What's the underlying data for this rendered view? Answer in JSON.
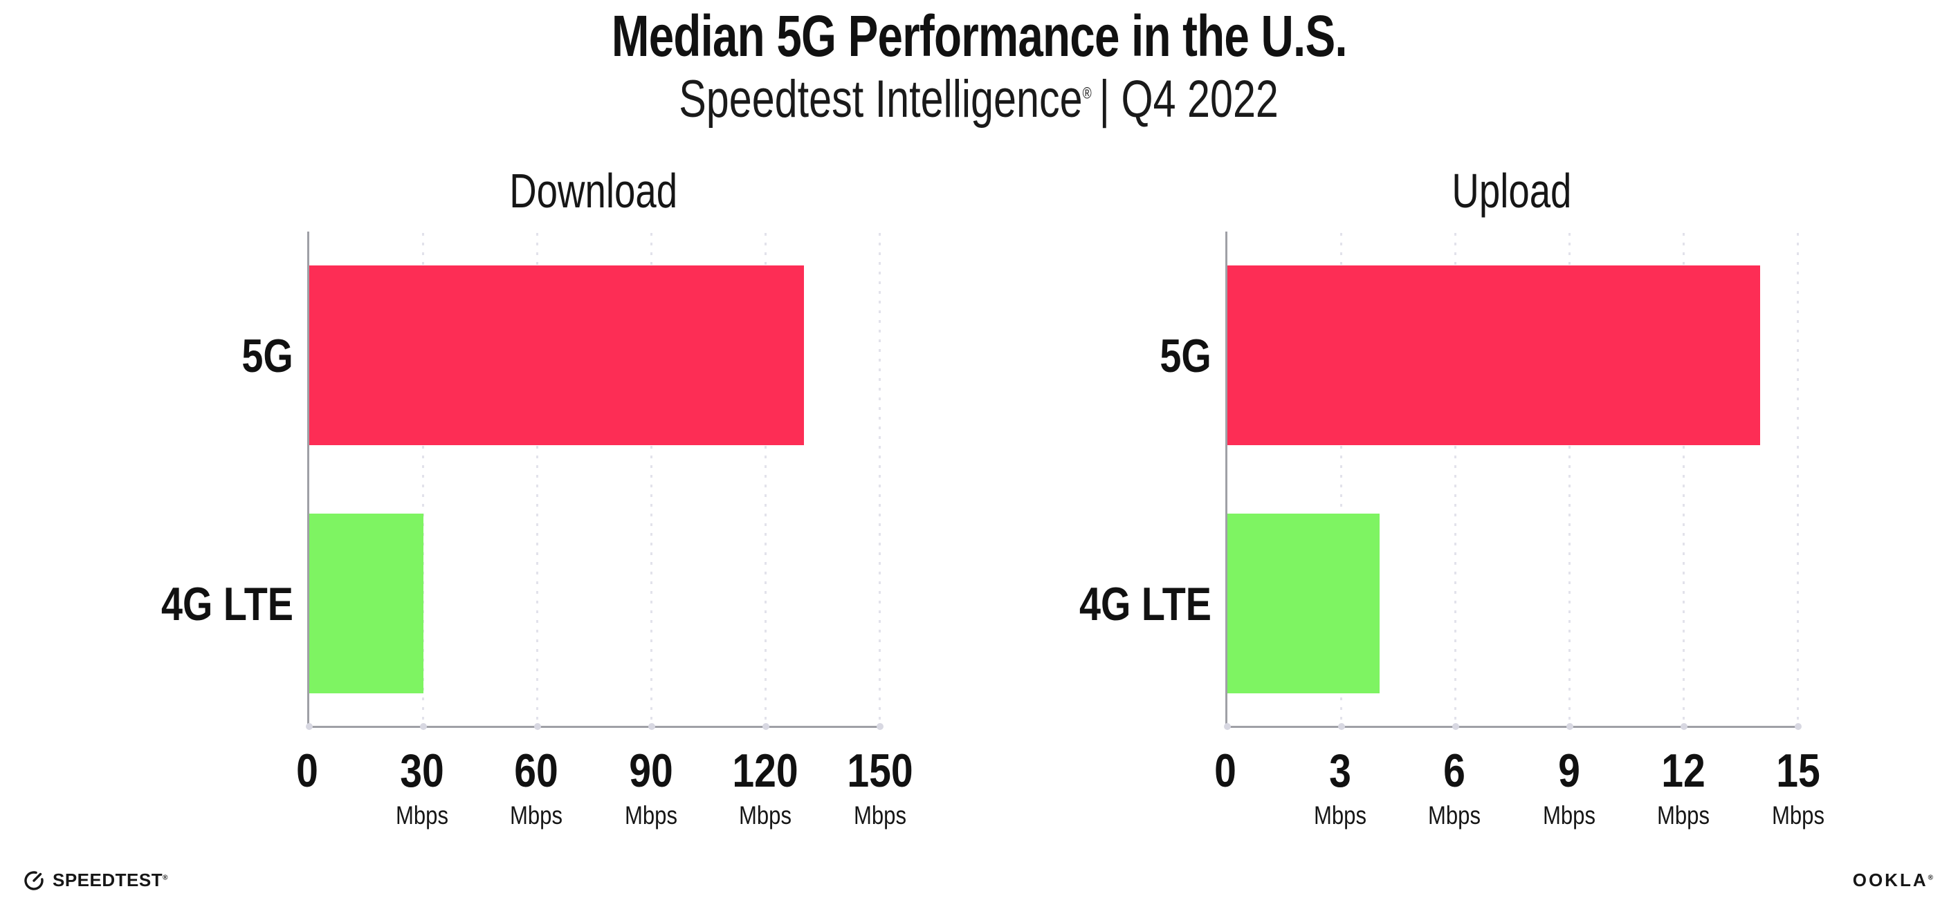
{
  "header": {
    "title": "Median 5G Performance in the U.S.",
    "subtitle_brand": "Speedtest Intelligence",
    "subtitle_mark": "®",
    "subtitle_rest": "| Q4 2022"
  },
  "chart_data": [
    {
      "type": "bar",
      "orientation": "horizontal",
      "title": "Download",
      "categories": [
        "5G",
        "4G LTE"
      ],
      "values": [
        130,
        30
      ],
      "unit": "Mbps",
      "xlim": [
        0,
        150
      ],
      "xticks": [
        0,
        30,
        60,
        90,
        120,
        150
      ],
      "bar_colors": [
        "#FD2D55",
        "#7EF462"
      ],
      "grid": "dotted-vertical",
      "legend": "none"
    },
    {
      "type": "bar",
      "orientation": "horizontal",
      "title": "Upload",
      "categories": [
        "5G",
        "4G LTE"
      ],
      "values": [
        14,
        4
      ],
      "unit": "Mbps",
      "xlim": [
        0,
        15
      ],
      "xticks": [
        0,
        3,
        6,
        9,
        12,
        15
      ],
      "bar_colors": [
        "#FD2D55",
        "#7EF462"
      ],
      "grid": "dotted-vertical",
      "legend": "none"
    }
  ],
  "footer": {
    "speedtest_label": "SPEEDTEST",
    "speedtest_mark": "®",
    "ookla_label": "OOKLA",
    "ookla_mark": "®"
  },
  "colors": {
    "bar_5g": "#FD2D55",
    "bar_4g_lte": "#7EF462",
    "axis": "#9FA0A6",
    "gridline": "#E2E2EB",
    "text": "#111111",
    "background": "#FFFFFF"
  }
}
